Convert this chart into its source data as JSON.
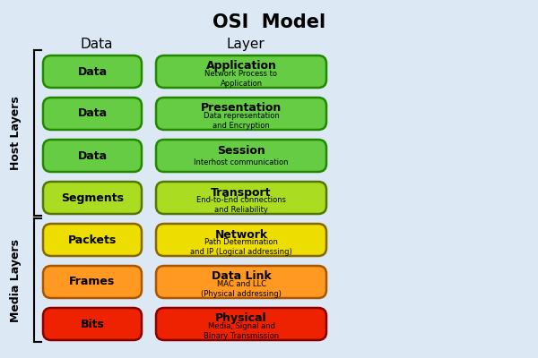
{
  "title": "OSI  Model",
  "col_header_data": "Data",
  "col_header_layer": "Layer",
  "background_color": "#dce9f5",
  "layers": [
    {
      "data_label": "Data",
      "layer_name": "Application",
      "layer_desc": "Network Process to\nApplication",
      "color": "#66cc44",
      "border_color": "#228800"
    },
    {
      "data_label": "Data",
      "layer_name": "Presentation",
      "layer_desc": "Data representation\nand Encryption",
      "color": "#66cc44",
      "border_color": "#228800"
    },
    {
      "data_label": "Data",
      "layer_name": "Session",
      "layer_desc": "Interhost communication",
      "color": "#66cc44",
      "border_color": "#228800"
    },
    {
      "data_label": "Segments",
      "layer_name": "Transport",
      "layer_desc": "End-to-End connections\nand Reliability",
      "color": "#aadd22",
      "border_color": "#557700"
    },
    {
      "data_label": "Packets",
      "layer_name": "Network",
      "layer_desc": "Path Determination\nand IP (Logical addressing)",
      "color": "#eedd00",
      "border_color": "#886600"
    },
    {
      "data_label": "Frames",
      "layer_name": "Data Link",
      "layer_desc": "MAC and LLC\n(Physical addressing)",
      "color": "#ff9922",
      "border_color": "#aa5500"
    },
    {
      "data_label": "Bits",
      "layer_name": "Physical",
      "layer_desc": "Media, Signal and\nBinary Transmission",
      "color": "#ee2200",
      "border_color": "#880000"
    }
  ],
  "host_layers_range": [
    0,
    4
  ],
  "media_layers_range": [
    4,
    7
  ],
  "host_label": "Host Layers",
  "media_label": "Media Layers"
}
